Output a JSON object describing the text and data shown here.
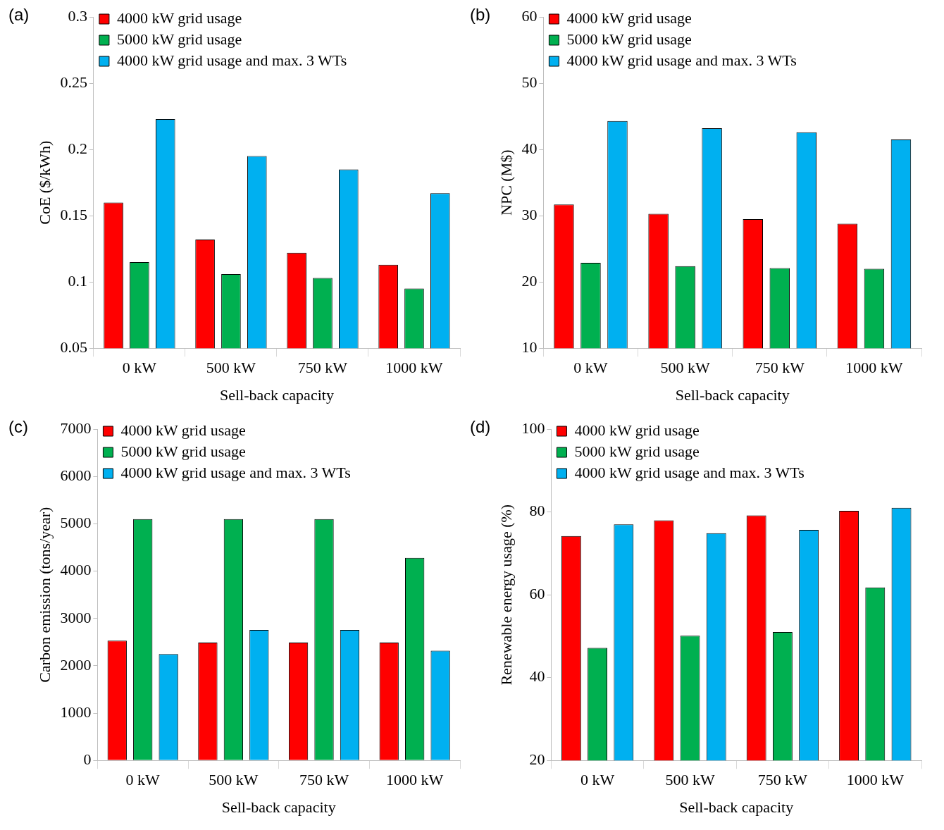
{
  "chart_data": [
    {
      "type": "bar",
      "title": "(a)",
      "xlabel": "Sell-back capacity",
      "ylabel": "CoE ($/kWh)",
      "categories": [
        "0 kW",
        "500 kW",
        "750 kW",
        "1000 kW"
      ],
      "series": [
        {
          "name": "4000 kW grid usage",
          "color": "#ff0000",
          "values": [
            0.16,
            0.132,
            0.122,
            0.113
          ]
        },
        {
          "name": "5000 kW grid usage",
          "color": "#00b050",
          "values": [
            0.115,
            0.106,
            0.103,
            0.095
          ]
        },
        {
          "name": "4000 kW grid usage and max. 3 WTs",
          "color": "#00b0f0",
          "values": [
            0.223,
            0.195,
            0.185,
            0.167
          ]
        }
      ],
      "ylim": [
        0.05,
        0.3
      ],
      "yticks": [
        0.05,
        0.1,
        0.15,
        0.2,
        0.25,
        0.3
      ],
      "grid": false,
      "legend": "top left"
    },
    {
      "type": "bar",
      "title": "(b)",
      "xlabel": "Sell-back capacity",
      "ylabel": "NPC (M$)",
      "categories": [
        "0 kW",
        "500 kW",
        "750 kW",
        "1000 kW"
      ],
      "series": [
        {
          "name": "4000 kW grid usage",
          "color": "#ff0000",
          "values": [
            31.7,
            30.3,
            29.5,
            28.8
          ]
        },
        {
          "name": "5000 kW grid usage",
          "color": "#00b050",
          "values": [
            22.9,
            22.4,
            22.1,
            22.0
          ]
        },
        {
          "name": "4000 kW grid usage and max. 3 WTs",
          "color": "#00b0f0",
          "values": [
            44.3,
            43.2,
            42.6,
            41.5
          ]
        }
      ],
      "ylim": [
        10,
        60
      ],
      "yticks": [
        10,
        20,
        30,
        40,
        50,
        60
      ],
      "grid": false,
      "legend": "top left"
    },
    {
      "type": "bar",
      "title": "(c)",
      "xlabel": "Sell-back capacity",
      "ylabel": "Carbon emission (tons/year)",
      "categories": [
        "0 kW",
        "500 kW",
        "750 kW",
        "1000 kW"
      ],
      "series": [
        {
          "name": "4000 kW grid usage",
          "color": "#ff0000",
          "values": [
            2530,
            2490,
            2490,
            2490
          ]
        },
        {
          "name": "5000 kW grid usage",
          "color": "#00b050",
          "values": [
            5100,
            5100,
            5100,
            4280
          ]
        },
        {
          "name": "4000 kW grid usage and max. 3 WTs",
          "color": "#00b0f0",
          "values": [
            2250,
            2760,
            2760,
            2320
          ]
        }
      ],
      "ylim": [
        0,
        7000
      ],
      "yticks": [
        0,
        1000,
        2000,
        3000,
        4000,
        5000,
        6000,
        7000
      ],
      "grid": false,
      "legend": "top left"
    },
    {
      "type": "bar",
      "title": "(d)",
      "xlabel": "Sell-back capacity",
      "ylabel": "Renewable energy usage (%)",
      "categories": [
        "0 kW",
        "500 kW",
        "750 kW",
        "1000 kW"
      ],
      "series": [
        {
          "name": "4000 kW grid usage",
          "color": "#ff0000",
          "values": [
            74.2,
            78.0,
            79.2,
            80.3
          ]
        },
        {
          "name": "5000 kW grid usage",
          "color": "#00b050",
          "values": [
            47.2,
            50.1,
            51.0,
            61.8
          ]
        },
        {
          "name": "4000 kW grid usage and max. 3 WTs",
          "color": "#00b0f0",
          "values": [
            77.0,
            74.9,
            75.7,
            81.0
          ]
        }
      ],
      "ylim": [
        20,
        100
      ],
      "yticks": [
        20,
        40,
        60,
        80,
        100
      ],
      "grid": false,
      "legend": "top left"
    }
  ]
}
